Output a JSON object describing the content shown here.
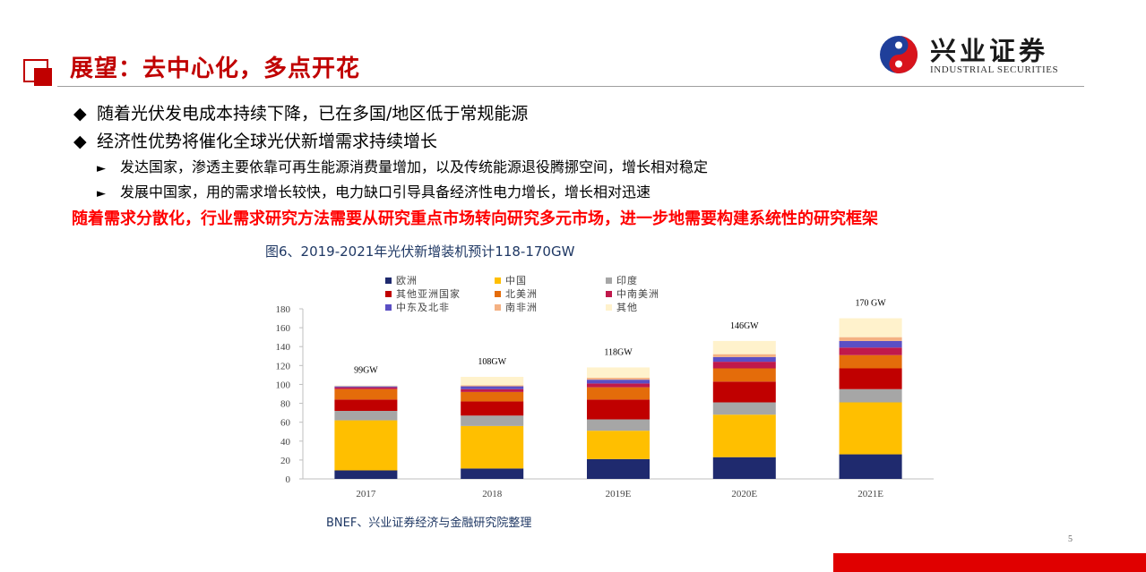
{
  "header": {
    "title": "展望：去中心化，多点开花",
    "logo": {
      "name_cn": "兴业证券",
      "name_en": "INDUSTRIAL SECURITIES"
    }
  },
  "bullets": [
    "随着光伏发电成本持续下降，已在多国/地区低于常规能源",
    "经济性优势将催化全球光伏新增需求持续增长"
  ],
  "sub_bullets": [
    "发达国家，渗透主要依靠可再生能源消费量增加，以及传统能源退役腾挪空间，增长相对稳定",
    "发展中国家，用的需求增长较快，电力缺口引导具备经济性电力增长，增长相对迅速"
  ],
  "marks": {
    "diamond": "◆",
    "triangle": "►"
  },
  "highlight": "随着需求分散化，行业需求研究方法需要从研究重点市场转向研究多元市场，进一步地需要构建系统性的研究框架",
  "figure_caption": "图6、2019-2021年光伏新增装机预计118-170GW",
  "source": "BNEF、兴业证券经济与金融研究院整理",
  "page_number": "5",
  "chart_data": {
    "type": "bar",
    "stacked": true,
    "categories": [
      "2017",
      "2018",
      "2019E",
      "2020E",
      "2021E"
    ],
    "totals_labels": [
      "99GW",
      "108GW",
      "118GW",
      "146GW",
      "170 GW"
    ],
    "ylim": [
      0,
      180
    ],
    "yticks": [
      0,
      20,
      40,
      60,
      80,
      100,
      120,
      140,
      160,
      180
    ],
    "legend_position": "top",
    "grid": false,
    "series": [
      {
        "name": "欧洲",
        "color": "#1f2a6e",
        "values": [
          9,
          11,
          21,
          23,
          26
        ]
      },
      {
        "name": "中国",
        "color": "#ffbf00",
        "values": [
          53,
          45,
          30,
          45,
          55
        ]
      },
      {
        "name": "印度",
        "color": "#a6a6a6",
        "values": [
          10,
          11,
          12,
          13,
          14
        ]
      },
      {
        "name": "其他亚洲国家",
        "color": "#c00000",
        "values": [
          12,
          15,
          21,
          22,
          22
        ]
      },
      {
        "name": "北美洲",
        "color": "#e46c0a",
        "values": [
          11,
          10,
          13,
          14,
          14
        ]
      },
      {
        "name": "中南美洲",
        "color": "#c0194b",
        "values": [
          2,
          3,
          4,
          7,
          8
        ]
      },
      {
        "name": "中东及北非",
        "color": "#5b4fc4",
        "values": [
          1,
          3,
          4,
          5,
          7
        ]
      },
      {
        "name": "南非洲",
        "color": "#f4b183",
        "values": [
          0,
          1,
          2,
          3,
          4
        ]
      },
      {
        "name": "其他",
        "color": "#fff2cc",
        "values": [
          1,
          9,
          11,
          14,
          20
        ]
      }
    ]
  }
}
